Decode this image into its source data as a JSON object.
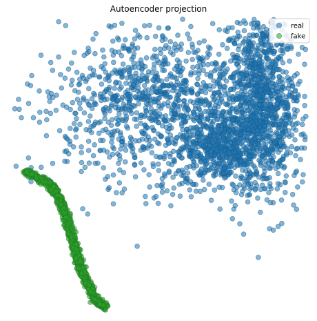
{
  "chart_data": {
    "type": "scatter",
    "title": "Autoencoder projection",
    "xlabel": "",
    "ylabel": "",
    "axes_visible": false,
    "grid": false,
    "xlim": [
      -1.0,
      1.0
    ],
    "ylim": [
      -1.0,
      1.0
    ],
    "legend": {
      "placement": "top-right"
    },
    "point_alpha": 0.55,
    "series": [
      {
        "name": "real",
        "color": "#1f77b4",
        "regions": [
          {
            "cx": 0.7,
            "cy": 0.45,
            "sx": 0.13,
            "sy": 0.33,
            "n": 1100
          },
          {
            "cx": 0.42,
            "cy": 0.12,
            "sx": 0.13,
            "sy": 0.12,
            "n": 450
          },
          {
            "cx": 0.05,
            "cy": 0.35,
            "sx": 0.4,
            "sy": 0.28,
            "n": 900
          },
          {
            "cx": -0.1,
            "cy": 0.55,
            "sx": 0.3,
            "sy": 0.22,
            "n": 250
          }
        ]
      },
      {
        "name": "fake",
        "color": "#2ca02c",
        "curve": [
          [
            -0.9,
            -0.04
          ],
          [
            -0.72,
            -0.14
          ],
          [
            -0.64,
            -0.3
          ],
          [
            -0.58,
            -0.5
          ],
          [
            -0.52,
            -0.72
          ],
          [
            -0.43,
            -0.92
          ],
          [
            -0.36,
            -0.97
          ]
        ],
        "n": 1400
      }
    ]
  }
}
